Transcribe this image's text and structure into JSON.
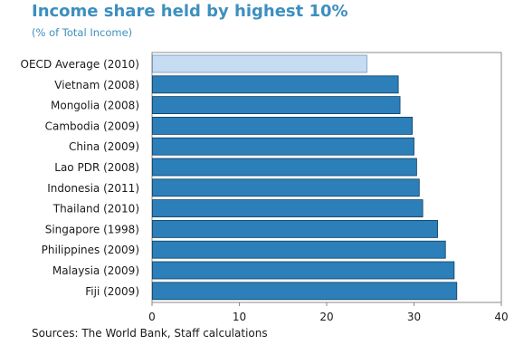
{
  "chart_data": {
    "type": "bar",
    "orientation": "horizontal",
    "title": "Income share held by highest 10%",
    "subtitle": "(% of Total Income)",
    "source": "Sources: The World Bank, Staff calculations",
    "categories": [
      "OECD Average (2010)",
      "Vietnam (2008)",
      "Mongolia (2008)",
      "Cambodia (2009)",
      "China (2009)",
      "Lao PDR (2008)",
      "Indonesia (2011)",
      "Thailand (2010)",
      "Singapore (1998)",
      "Philippines (2009)",
      "Malaysia (2009)",
      "Fiji (2009)"
    ],
    "values": [
      24.6,
      28.2,
      28.4,
      29.8,
      30.0,
      30.3,
      30.6,
      31.0,
      32.7,
      33.6,
      34.6,
      34.9
    ],
    "highlight_index": 0,
    "xlim": [
      0,
      40
    ],
    "xticks": [
      0,
      10,
      20,
      30,
      40
    ],
    "grid": false,
    "colors": {
      "bar": "#2c7fb8",
      "bar_edge": "#0c3f66",
      "highlight": "#c6dcf2",
      "highlight_edge": "#6f93b8",
      "title": "#3d8fbf",
      "frame": "#8a8a8a"
    }
  }
}
